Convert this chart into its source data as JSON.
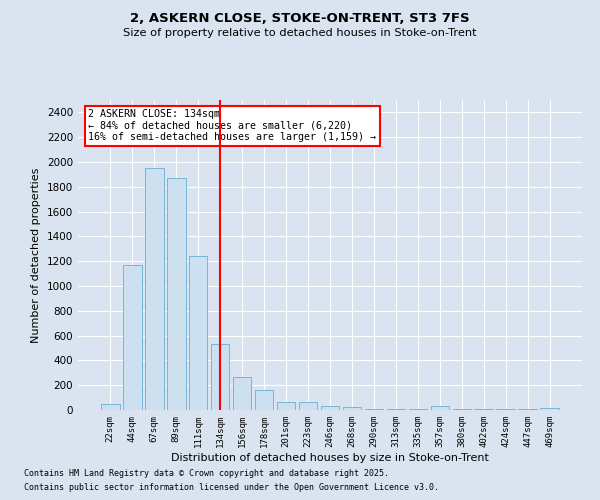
{
  "title1": "2, ASKERN CLOSE, STOKE-ON-TRENT, ST3 7FS",
  "title2": "Size of property relative to detached houses in Stoke-on-Trent",
  "xlabel": "Distribution of detached houses by size in Stoke-on-Trent",
  "ylabel": "Number of detached properties",
  "footnote1": "Contains HM Land Registry data © Crown copyright and database right 2025.",
  "footnote2": "Contains public sector information licensed under the Open Government Licence v3.0.",
  "property_label": "2 ASKERN CLOSE: 134sqm",
  "annotation_line1": "← 84% of detached houses are smaller (6,220)",
  "annotation_line2": "16% of semi-detached houses are larger (1,159) →",
  "bar_color": "#cce0f0",
  "bar_edge_color": "#6aaed6",
  "vline_color": "red",
  "annotation_box_edge_color": "red",
  "background_color": "#d9e4f0",
  "plot_bg_color": "#d9e4f0",
  "categories": [
    "22sqm",
    "44sqm",
    "67sqm",
    "89sqm",
    "111sqm",
    "134sqm",
    "156sqm",
    "178sqm",
    "201sqm",
    "223sqm",
    "246sqm",
    "268sqm",
    "290sqm",
    "313sqm",
    "335sqm",
    "357sqm",
    "380sqm",
    "402sqm",
    "424sqm",
    "447sqm",
    "469sqm"
  ],
  "values": [
    50,
    1170,
    1950,
    1870,
    1240,
    530,
    270,
    160,
    65,
    65,
    30,
    25,
    5,
    5,
    5,
    30,
    5,
    5,
    5,
    5,
    20
  ],
  "vline_index": 5,
  "ylim": [
    0,
    2500
  ],
  "yticks": [
    0,
    200,
    400,
    600,
    800,
    1000,
    1200,
    1400,
    1600,
    1800,
    2000,
    2200,
    2400
  ]
}
